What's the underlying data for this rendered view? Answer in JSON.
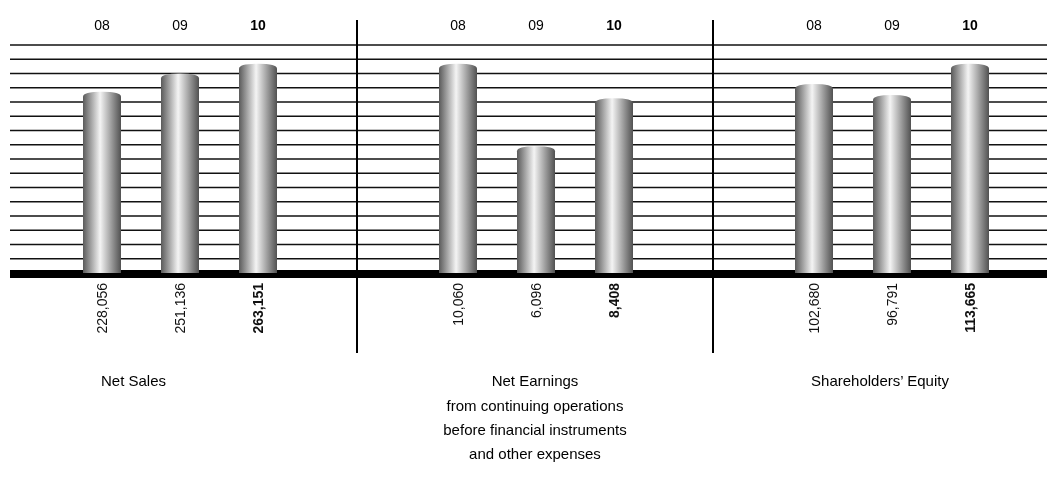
{
  "chart_data": [
    {
      "type": "bar",
      "title": "Net Sales",
      "categories": [
        "08",
        "09",
        "10"
      ],
      "series": [
        {
          "color": "#8a8a8a",
          "values": [
            228056,
            251136,
            263151
          ],
          "value_labels": [
            "228,056",
            "251,136",
            "263,151"
          ]
        }
      ],
      "grid": true,
      "tick_labels": "x"
    },
    {
      "type": "bar",
      "title": "Net Earnings",
      "subtitle": "from continuing operations before financial instruments and other expenses",
      "categories": [
        "08",
        "09",
        "10"
      ],
      "series": [
        {
          "color": "#8a8a8a",
          "values": [
            10060,
            6096,
            8408
          ],
          "value_labels": [
            "10,060",
            "6,096",
            "8,408"
          ]
        }
      ],
      "grid": true,
      "tick_labels": "x"
    },
    {
      "type": "bar",
      "title": "Shareholders’ Equity",
      "categories": [
        "08",
        "09",
        "10"
      ],
      "series": [
        {
          "color": "#8a8a8a",
          "values": [
            102680,
            96791,
            113665
          ],
          "value_labels": [
            "102,680",
            "96,791",
            "113,665"
          ]
        }
      ],
      "grid": true,
      "tick_labels": "x"
    }
  ]
}
